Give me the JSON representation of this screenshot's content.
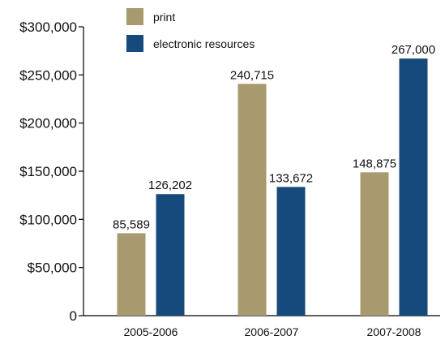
{
  "chart_data": {
    "type": "bar",
    "categories": [
      "2005-2006",
      "2006-2007",
      "2007-2008"
    ],
    "series": [
      {
        "name": "print",
        "values": [
          85589,
          240715,
          148875
        ],
        "value_labels": [
          "85,589",
          "240,715",
          "148,875"
        ],
        "color": "#a89a6e"
      },
      {
        "name": "electronic resources",
        "values": [
          126202,
          133672,
          267000
        ],
        "value_labels": [
          "126,202",
          "133,672",
          "267,000"
        ],
        "color": "#174a7c"
      }
    ],
    "title": "",
    "xlabel": "",
    "ylabel": "",
    "ylim": [
      0,
      300000
    ],
    "yticks": [
      0,
      50000,
      100000,
      150000,
      200000,
      250000,
      300000
    ],
    "ytick_labels": [
      "0",
      "$50,000",
      "$100,000",
      "$150,000",
      "$200,000",
      "$250,000",
      "$300,000"
    ],
    "grid": false,
    "legend_position": "top-center"
  }
}
